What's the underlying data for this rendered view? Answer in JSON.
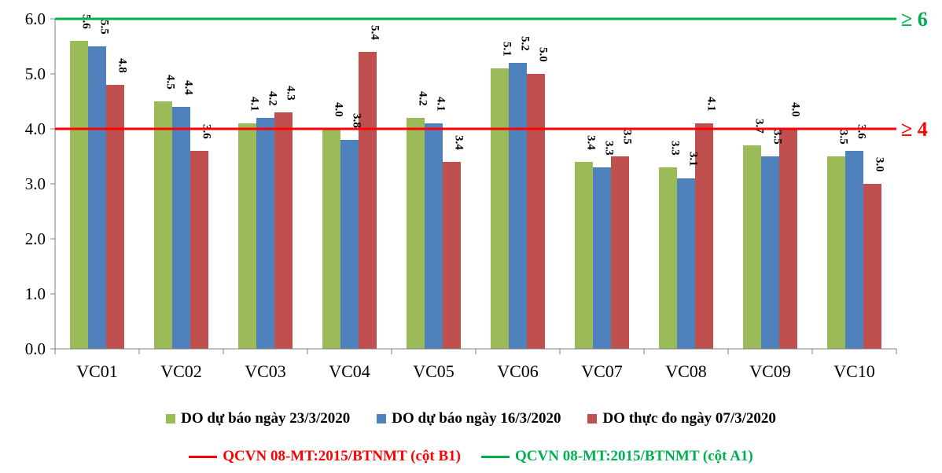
{
  "chart_data": {
    "type": "bar",
    "title": "",
    "xlabel": "",
    "ylabel": "",
    "ylim": [
      0,
      6
    ],
    "yticks": [
      "0.0",
      "1.0",
      "2.0",
      "3.0",
      "4.0",
      "5.0",
      "6.0"
    ],
    "grid": false,
    "legend_position": "bottom",
    "categories": [
      "VC01",
      "VC02",
      "VC03",
      "VC04",
      "VC05",
      "VC06",
      "VC07",
      "VC08",
      "VC09",
      "VC10"
    ],
    "series": [
      {
        "name": "DO dự báo ngày 23/3/2020",
        "color": "#9BBB59",
        "values": [
          5.6,
          4.5,
          4.1,
          4.0,
          4.2,
          5.1,
          3.4,
          3.3,
          3.7,
          3.5
        ]
      },
      {
        "name": "DO dự báo ngày 16/3/2020",
        "color": "#4F81BD",
        "values": [
          5.5,
          4.4,
          4.2,
          3.8,
          4.1,
          5.2,
          3.3,
          3.1,
          3.5,
          3.6
        ]
      },
      {
        "name": "DO thực đo ngày 07/3/2020",
        "color": "#C0504D",
        "values": [
          4.8,
          3.6,
          4.3,
          5.4,
          3.4,
          5.0,
          3.5,
          4.1,
          4.0,
          3.0
        ]
      }
    ],
    "thresholds": [
      {
        "name": "QCVN 08-MT:2015/BTNMT (cột B1)",
        "value": 4,
        "label": "≥ 4",
        "color": "#FF0000"
      },
      {
        "name": "QCVN 08-MT:2015/BTNMT (cột A1)",
        "value": 6,
        "label": "≥ 6",
        "color": "#00B050"
      }
    ]
  }
}
